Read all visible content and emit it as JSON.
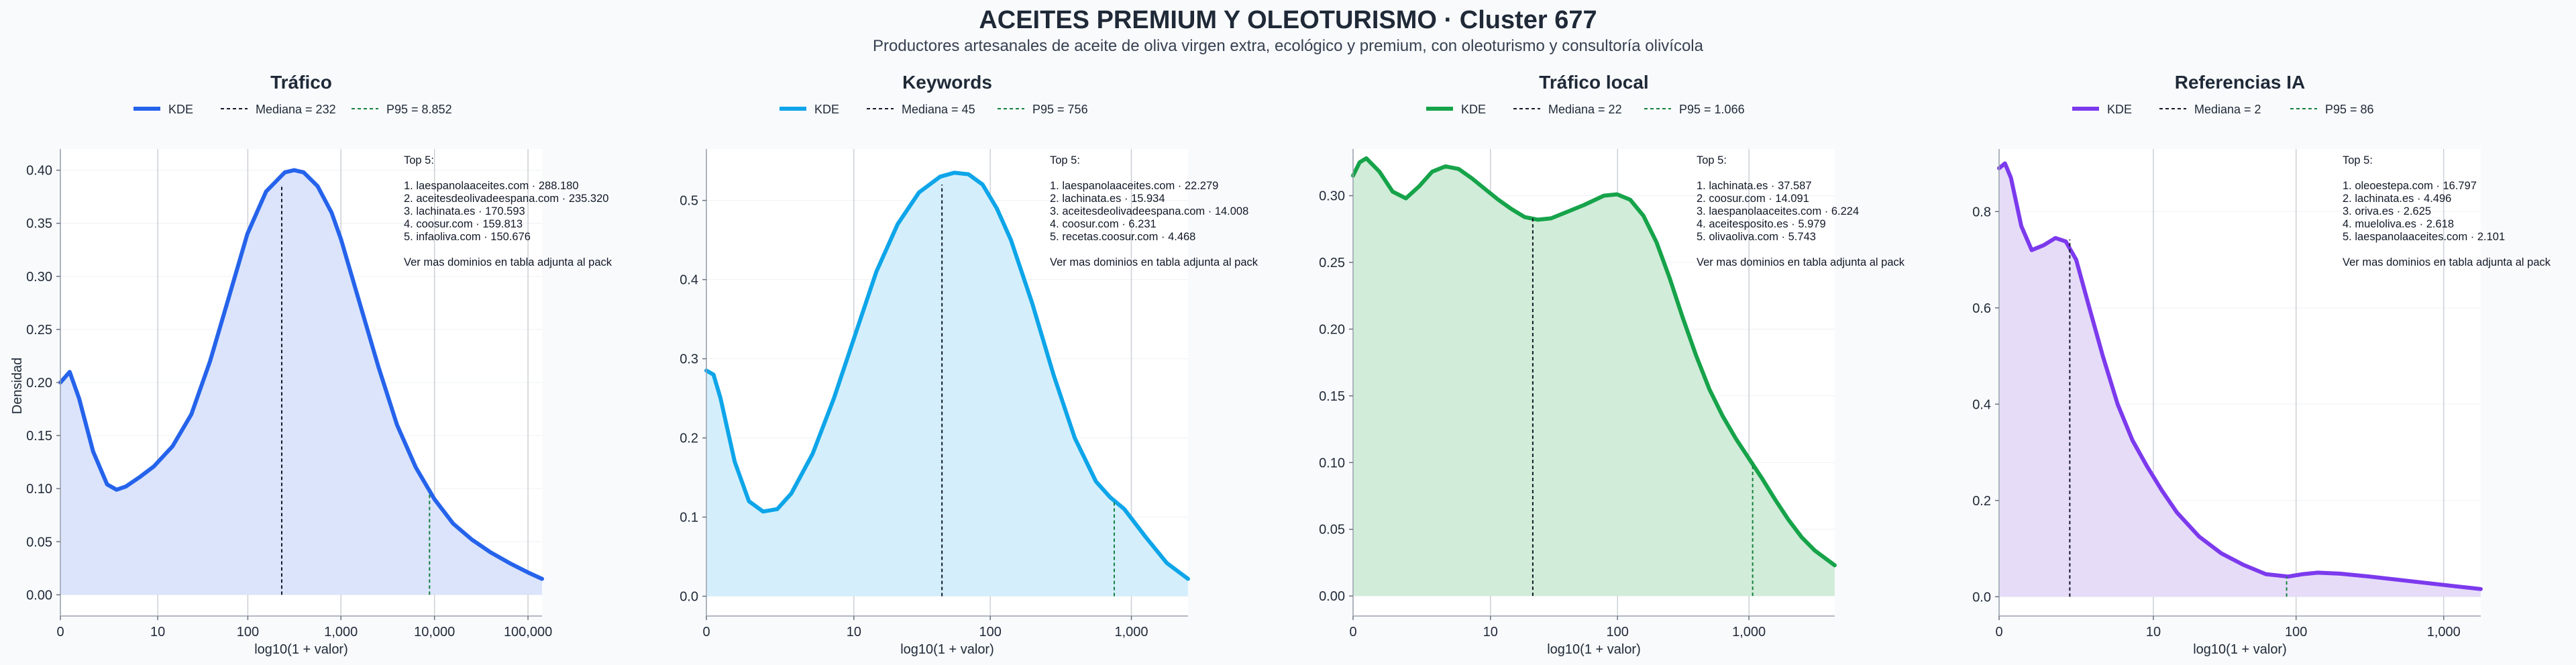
{
  "figure": {
    "title": "ACEITES PREMIUM Y OLEOTURISMO · Cluster 677",
    "subtitle": "Productores artesanales de aceite de oliva virgen extra, ecológico y premium, con oleoturismo y consultoría olivícola",
    "ylabel": "Densidad",
    "xlabel": "log10(1 + valor)",
    "legend": {
      "kde": "KDE"
    },
    "annotation_header": "Top 5:",
    "annotation_footer": "Ver mas dominios en tabla adjunta al pack"
  },
  "chart_data": [
    {
      "type": "area",
      "title": "Tráfico",
      "color": "#2563eb",
      "fill": "#dbe4fb",
      "xlabel": "log10(1 + valor)",
      "ylabel": "Densidad",
      "xlim": [
        0,
        5.15
      ],
      "ylim": [
        -0.02,
        0.42
      ],
      "xticks": [
        {
          "v": 0,
          "label": "0"
        },
        {
          "v": 1.041,
          "label": "10"
        },
        {
          "v": 2.004,
          "label": "100"
        },
        {
          "v": 3.0,
          "label": "1,000"
        },
        {
          "v": 4.0,
          "label": "10,000"
        },
        {
          "v": 5.0,
          "label": "100,000"
        }
      ],
      "yticks": [
        {
          "v": 0,
          "label": "0.00"
        },
        {
          "v": 0.05,
          "label": "0.05"
        },
        {
          "v": 0.1,
          "label": "0.10"
        },
        {
          "v": 0.15,
          "label": "0.15"
        },
        {
          "v": 0.2,
          "label": "0.20"
        },
        {
          "v": 0.25,
          "label": "0.25"
        },
        {
          "v": 0.3,
          "label": "0.30"
        },
        {
          "v": 0.35,
          "label": "0.35"
        },
        {
          "v": 0.4,
          "label": "0.40"
        }
      ],
      "kde": {
        "x": [
          0,
          0.1,
          0.2,
          0.35,
          0.5,
          0.6,
          0.7,
          0.85,
          1.0,
          1.2,
          1.4,
          1.6,
          1.8,
          2.0,
          2.2,
          2.4,
          2.5,
          2.6,
          2.75,
          2.9,
          3.0,
          3.2,
          3.4,
          3.6,
          3.8,
          4.0,
          4.2,
          4.4,
          4.6,
          4.8,
          5.0,
          5.15
        ],
        "y": [
          0.2,
          0.21,
          0.185,
          0.135,
          0.104,
          0.099,
          0.102,
          0.111,
          0.121,
          0.14,
          0.17,
          0.22,
          0.28,
          0.34,
          0.38,
          0.398,
          0.4,
          0.398,
          0.385,
          0.36,
          0.335,
          0.275,
          0.215,
          0.16,
          0.12,
          0.09,
          0.067,
          0.052,
          0.04,
          0.03,
          0.021,
          0.015
        ]
      },
      "median": {
        "label": "Mediana = 232",
        "x": 2.367,
        "y": 0.385
      },
      "p95": {
        "label": "P95 = 8.852",
        "x": 3.947,
        "y": 0.097
      },
      "top5": [
        "1. laespanolaaceites.com · 288.180",
        "2. aceitesdeolivadeespana.com · 235.320",
        "3. lachinata.es · 170.593",
        "4. coosur.com · 159.813",
        "5. infaoliva.com · 150.676"
      ]
    },
    {
      "type": "area",
      "title": "Keywords",
      "color": "#0ea5e9",
      "fill": "#d4effb",
      "xlabel": "log10(1 + valor)",
      "ylim": [
        -0.025,
        0.565
      ],
      "xlim": [
        0,
        3.4
      ],
      "xticks": [
        {
          "v": 0,
          "label": "0"
        },
        {
          "v": 1.041,
          "label": "10"
        },
        {
          "v": 2.004,
          "label": "100"
        },
        {
          "v": 3.0,
          "label": "1,000"
        }
      ],
      "yticks": [
        {
          "v": 0,
          "label": "0.0"
        },
        {
          "v": 0.1,
          "label": "0.1"
        },
        {
          "v": 0.2,
          "label": "0.2"
        },
        {
          "v": 0.3,
          "label": "0.3"
        },
        {
          "v": 0.4,
          "label": "0.4"
        },
        {
          "v": 0.5,
          "label": "0.5"
        }
      ],
      "kde": {
        "x": [
          0,
          0.05,
          0.1,
          0.2,
          0.3,
          0.4,
          0.5,
          0.6,
          0.75,
          0.9,
          1.05,
          1.2,
          1.35,
          1.5,
          1.65,
          1.75,
          1.85,
          1.95,
          2.05,
          2.15,
          2.3,
          2.45,
          2.6,
          2.75,
          2.85,
          2.95,
          3.1,
          3.25,
          3.4
        ],
        "y": [
          0.285,
          0.28,
          0.25,
          0.17,
          0.12,
          0.107,
          0.11,
          0.13,
          0.18,
          0.25,
          0.33,
          0.41,
          0.47,
          0.51,
          0.53,
          0.535,
          0.533,
          0.52,
          0.49,
          0.45,
          0.37,
          0.28,
          0.2,
          0.145,
          0.125,
          0.11,
          0.075,
          0.042,
          0.022
        ]
      },
      "median": {
        "label": "Mediana = 45",
        "x": 1.663,
        "y": 0.52
      },
      "p95": {
        "label": "P95 = 756",
        "x": 2.879,
        "y": 0.12
      },
      "top5": [
        "1. laespanolaaceites.com · 22.279",
        "2. lachinata.es · 15.934",
        "3. aceitesdeolivadeespana.com · 14.008",
        "4. coosur.com · 6.231",
        "5. recetas.coosur.com · 4.468"
      ]
    },
    {
      "type": "area",
      "title": "Tráfico local",
      "color": "#16a34a",
      "fill": "#d1ecd9",
      "xlabel": "log10(1 + valor)",
      "ylim": [
        -0.015,
        0.335
      ],
      "xlim": [
        0,
        3.65
      ],
      "xticks": [
        {
          "v": 0,
          "label": "0"
        },
        {
          "v": 1.041,
          "label": "10"
        },
        {
          "v": 2.004,
          "label": "100"
        },
        {
          "v": 3.0,
          "label": "1,000"
        }
      ],
      "yticks": [
        {
          "v": 0,
          "label": "0.00"
        },
        {
          "v": 0.05,
          "label": "0.05"
        },
        {
          "v": 0.1,
          "label": "0.10"
        },
        {
          "v": 0.15,
          "label": "0.15"
        },
        {
          "v": 0.2,
          "label": "0.20"
        },
        {
          "v": 0.25,
          "label": "0.25"
        },
        {
          "v": 0.3,
          "label": "0.30"
        }
      ],
      "kde": {
        "x": [
          0,
          0.05,
          0.1,
          0.2,
          0.3,
          0.4,
          0.5,
          0.6,
          0.7,
          0.8,
          0.9,
          1.0,
          1.1,
          1.2,
          1.3,
          1.4,
          1.5,
          1.6,
          1.75,
          1.9,
          2.0,
          2.1,
          2.2,
          2.3,
          2.4,
          2.5,
          2.6,
          2.7,
          2.8,
          2.9,
          3.0,
          3.1,
          3.2,
          3.3,
          3.4,
          3.5,
          3.65
        ],
        "y": [
          0.315,
          0.325,
          0.328,
          0.318,
          0.303,
          0.298,
          0.307,
          0.318,
          0.322,
          0.32,
          0.313,
          0.305,
          0.297,
          0.29,
          0.284,
          0.282,
          0.283,
          0.287,
          0.293,
          0.3,
          0.301,
          0.297,
          0.285,
          0.265,
          0.238,
          0.208,
          0.18,
          0.155,
          0.135,
          0.118,
          0.103,
          0.088,
          0.072,
          0.057,
          0.044,
          0.034,
          0.023
        ]
      },
      "median": {
        "label": "Mediana = 22",
        "x": 1.362,
        "y": 0.283
      },
      "p95": {
        "label": "P95 = 1.066",
        "x": 3.028,
        "y": 0.1
      },
      "top5": [
        "1. lachinata.es · 37.587",
        "2. coosur.com · 14.091",
        "3. laespanolaaceites.com · 6.224",
        "4. aceitesposito.es · 5.979",
        "5. olivaoliva.com · 5.743"
      ]
    },
    {
      "type": "area",
      "title": "Referencias IA",
      "color": "#7c3aed",
      "fill": "#e6dcf8",
      "xlabel": "log10(1 + valor)",
      "ylim": [
        -0.04,
        0.93
      ],
      "xlim": [
        0,
        3.25
      ],
      "xticks": [
        {
          "v": 0,
          "label": "0"
        },
        {
          "v": 1.041,
          "label": "10"
        },
        {
          "v": 2.004,
          "label": "100"
        },
        {
          "v": 3.0,
          "label": "1,000"
        }
      ],
      "yticks": [
        {
          "v": 0,
          "label": "0.0"
        },
        {
          "v": 0.2,
          "label": "0.2"
        },
        {
          "v": 0.4,
          "label": "0.4"
        },
        {
          "v": 0.6,
          "label": "0.6"
        },
        {
          "v": 0.8,
          "label": "0.8"
        }
      ],
      "kde": {
        "x": [
          0,
          0.04,
          0.08,
          0.15,
          0.22,
          0.3,
          0.38,
          0.45,
          0.52,
          0.6,
          0.7,
          0.8,
          0.9,
          1.0,
          1.1,
          1.2,
          1.35,
          1.5,
          1.65,
          1.8,
          1.95,
          2.05,
          2.15,
          2.3,
          2.5,
          2.7,
          2.9,
          3.1,
          3.25
        ],
        "y": [
          0.89,
          0.9,
          0.87,
          0.77,
          0.72,
          0.73,
          0.745,
          0.738,
          0.7,
          0.61,
          0.5,
          0.4,
          0.325,
          0.27,
          0.22,
          0.175,
          0.125,
          0.09,
          0.066,
          0.047,
          0.042,
          0.047,
          0.05,
          0.048,
          0.042,
          0.035,
          0.028,
          0.021,
          0.016
        ]
      },
      "median": {
        "label": "Mediana = 2",
        "x": 0.477,
        "y": 0.742
      },
      "p95": {
        "label": "P95 = 86",
        "x": 1.94,
        "y": 0.042
      },
      "top5": [
        "1. oleoestepa.com · 16.797",
        "2. lachinata.es · 4.496",
        "3. oriva.es · 2.625",
        "4. mueloliva.es · 2.618",
        "5. laespanolaaceites.com · 2.101"
      ]
    }
  ]
}
